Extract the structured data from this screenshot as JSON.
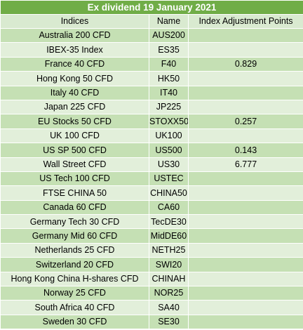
{
  "title": "Ex dividend 19 January 2021",
  "headers": {
    "indices": "Indices",
    "name": "Name",
    "points": "Index Adjustment Points"
  },
  "rows": [
    {
      "index": "Australia 200 CFD",
      "name": "AUS200",
      "points": ""
    },
    {
      "index": "IBEX-35 Index",
      "name": "ES35",
      "points": ""
    },
    {
      "index": "France 40 CFD",
      "name": "F40",
      "points": "0.829"
    },
    {
      "index": "Hong Kong 50 CFD",
      "name": "HK50",
      "points": ""
    },
    {
      "index": "Italy 40 CFD",
      "name": "IT40",
      "points": ""
    },
    {
      "index": "Japan 225 CFD",
      "name": "JP225",
      "points": ""
    },
    {
      "index": "EU Stocks 50 CFD",
      "name": "STOXX50",
      "points": "0.257"
    },
    {
      "index": "UK 100 CFD",
      "name": "UK100",
      "points": ""
    },
    {
      "index": "US SP 500 CFD",
      "name": "US500",
      "points": "0.143"
    },
    {
      "index": "Wall Street CFD",
      "name": "US30",
      "points": "6.777"
    },
    {
      "index": "US Tech 100 CFD",
      "name": "USTEC",
      "points": ""
    },
    {
      "index": "FTSE CHINA 50",
      "name": "CHINA50",
      "points": ""
    },
    {
      "index": "Canada 60 CFD",
      "name": "CA60",
      "points": ""
    },
    {
      "index": "Germany Tech 30 CFD",
      "name": "TecDE30",
      "points": ""
    },
    {
      "index": "Germany Mid 60 CFD",
      "name": "MidDE60",
      "points": ""
    },
    {
      "index": "Netherlands 25 CFD",
      "name": "NETH25",
      "points": ""
    },
    {
      "index": "Switzerland 20 CFD",
      "name": "SWI20",
      "points": ""
    },
    {
      "index": "Hong Kong China H-shares CFD",
      "name": "CHINAH",
      "points": ""
    },
    {
      "index": "Norway 25 CFD",
      "name": "NOR25",
      "points": ""
    },
    {
      "index": "South Africa 40 CFD",
      "name": "SA40",
      "points": ""
    },
    {
      "index": "Sweden 30 CFD",
      "name": "SE30",
      "points": ""
    }
  ],
  "colors": {
    "title_bg": "#70ad47",
    "row_odd": "#c5e0b4",
    "row_even": "#e2efda"
  }
}
